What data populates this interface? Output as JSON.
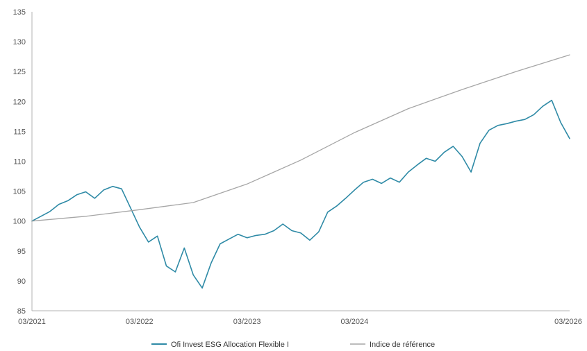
{
  "chart_data": {
    "type": "line",
    "title": "",
    "xlabel": "",
    "ylabel": "",
    "ylim": [
      85,
      135
    ],
    "yticks": [
      "135",
      "130",
      "125",
      "120",
      "115",
      "110",
      "105",
      "100",
      "95",
      "90",
      "85"
    ],
    "xlim": [
      "2021-03",
      "2026-03"
    ],
    "xticks": [
      "03/2021",
      "03/2022",
      "03/2023",
      "03/2024",
      "03/2026"
    ],
    "grid": false,
    "legend_position": "bottom",
    "series": [
      {
        "name": "Ofi Invest ESG Allocation Flexible I",
        "color": "#2e8aa6",
        "points": [
          [
            "2021-03",
            100.0
          ],
          [
            "2021-04",
            100.8
          ],
          [
            "2021-05",
            101.6
          ],
          [
            "2021-06",
            102.8
          ],
          [
            "2021-07",
            103.4
          ],
          [
            "2021-08",
            104.4
          ],
          [
            "2021-09",
            104.9
          ],
          [
            "2021-10",
            103.8
          ],
          [
            "2021-11",
            105.2
          ],
          [
            "2021-12",
            105.8
          ],
          [
            "2022-01",
            105.4
          ],
          [
            "2022-02",
            102.2
          ],
          [
            "2022-03",
            99.0
          ],
          [
            "2022-04",
            96.5
          ],
          [
            "2022-05",
            97.5
          ],
          [
            "2022-06",
            92.5
          ],
          [
            "2022-07",
            91.5
          ],
          [
            "2022-08",
            95.5
          ],
          [
            "2022-09",
            91.0
          ],
          [
            "2022-10",
            88.8
          ],
          [
            "2022-11",
            93.0
          ],
          [
            "2022-12",
            96.2
          ],
          [
            "2023-01",
            97.0
          ],
          [
            "2023-02",
            97.8
          ],
          [
            "2023-03",
            97.2
          ],
          [
            "2023-04",
            97.6
          ],
          [
            "2023-05",
            97.8
          ],
          [
            "2023-06",
            98.4
          ],
          [
            "2023-07",
            99.5
          ],
          [
            "2023-08",
            98.4
          ],
          [
            "2023-09",
            98.0
          ],
          [
            "2023-10",
            96.8
          ],
          [
            "2023-11",
            98.2
          ],
          [
            "2023-12",
            101.5
          ],
          [
            "2024-01",
            102.5
          ],
          [
            "2024-02",
            103.8
          ],
          [
            "2024-03",
            105.2
          ],
          [
            "2024-04",
            106.5
          ],
          [
            "2024-05",
            107.0
          ],
          [
            "2024-06",
            106.3
          ],
          [
            "2024-07",
            107.2
          ],
          [
            "2024-08",
            106.5
          ],
          [
            "2024-09",
            108.2
          ],
          [
            "2024-10",
            109.4
          ],
          [
            "2024-11",
            110.5
          ],
          [
            "2024-12",
            110.0
          ],
          [
            "2025-01",
            111.5
          ],
          [
            "2025-02",
            112.5
          ],
          [
            "2025-03",
            110.8
          ],
          [
            "2025-04",
            108.2
          ],
          [
            "2025-05",
            113.0
          ],
          [
            "2025-06",
            115.2
          ],
          [
            "2025-07",
            116.0
          ],
          [
            "2025-08",
            116.3
          ],
          [
            "2025-09",
            116.7
          ],
          [
            "2025-10",
            117.0
          ],
          [
            "2025-11",
            117.8
          ],
          [
            "2025-12",
            119.2
          ],
          [
            "2026-01",
            120.2
          ],
          [
            "2026-02",
            116.5
          ],
          [
            "2026-03",
            113.8
          ]
        ]
      },
      {
        "name": "Indice de référence",
        "color": "#a6a6a6",
        "points": [
          [
            "2021-03",
            100.0
          ],
          [
            "2021-09",
            100.8
          ],
          [
            "2022-03",
            101.9
          ],
          [
            "2022-09",
            103.1
          ],
          [
            "2023-03",
            106.2
          ],
          [
            "2023-09",
            110.2
          ],
          [
            "2024-03",
            114.8
          ],
          [
            "2024-09",
            118.8
          ],
          [
            "2025-03",
            122.0
          ],
          [
            "2025-09",
            125.0
          ],
          [
            "2026-03",
            127.8
          ]
        ]
      }
    ]
  }
}
